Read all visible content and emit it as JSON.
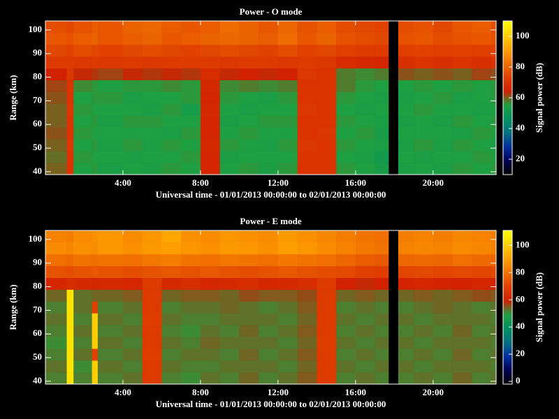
{
  "chart_data": [
    {
      "type": "heatmap",
      "title": "Power - O mode",
      "xlabel": "Universal time - 01/01/2013 00:00:00 to 02/01/2013 00:00:00",
      "ylabel": "Range (km)",
      "colorbar_label": "Signal power (dB)",
      "xlim": [
        0,
        23.25
      ],
      "ylim": [
        38.8,
        103.8
      ],
      "xticks": [
        {
          "value": 4,
          "label": "4:00"
        },
        {
          "value": 8,
          "label": "8:00"
        },
        {
          "value": 12,
          "label": "12:00"
        },
        {
          "value": 16,
          "label": "16:00"
        },
        {
          "value": 20,
          "label": "20:00"
        }
      ],
      "yticks": [
        40,
        50,
        60,
        70,
        80,
        90,
        100
      ],
      "clim": [
        10,
        110
      ],
      "colorbar_ticks": [
        20,
        40,
        60,
        80,
        100
      ],
      "colormap": [
        "#000000",
        "#000050",
        "#0030a0",
        "#007080",
        "#009060",
        "#20a040",
        "#d02000",
        "#e04000",
        "#f07000",
        "#ffa000",
        "#ffd000",
        "#ffff00"
      ],
      "x_edges": [
        0,
        1.1,
        1.45,
        2.4,
        2.7,
        4,
        5,
        6,
        7,
        8,
        9,
        10,
        11,
        12,
        13,
        14,
        15,
        16,
        17,
        17.7,
        18.2,
        19,
        20,
        21,
        22,
        23,
        23.25
      ],
      "y_edges": [
        38.8,
        43.8,
        48.8,
        53.8,
        58.8,
        63.8,
        68.8,
        73.8,
        78.8,
        83.8,
        88.8,
        93.8,
        98.8,
        103.8
      ],
      "z": [
        [
          60,
          70,
          55,
          56,
          54,
          55,
          54,
          56,
          55,
          66,
          55,
          56,
          54,
          56,
          70,
          70,
          56,
          55,
          53,
          null,
          54,
          55,
          54,
          56,
          55,
          56
        ],
        [
          59,
          70,
          56,
          55,
          55,
          54,
          55,
          55,
          56,
          66,
          54,
          55,
          55,
          55,
          70,
          70,
          55,
          54,
          52,
          null,
          55,
          54,
          55,
          55,
          56,
          55
        ],
        [
          60,
          71,
          55,
          56,
          54,
          56,
          54,
          56,
          55,
          67,
          56,
          55,
          54,
          56,
          71,
          70,
          56,
          55,
          54,
          null,
          54,
          56,
          54,
          56,
          55,
          54
        ],
        [
          61,
          70,
          56,
          55,
          55,
          55,
          55,
          54,
          56,
          66,
          55,
          56,
          55,
          55,
          70,
          71,
          55,
          56,
          53,
          null,
          55,
          55,
          55,
          54,
          56,
          55
        ],
        [
          60,
          70,
          55,
          56,
          54,
          56,
          56,
          55,
          55,
          66,
          54,
          55,
          56,
          56,
          70,
          70,
          56,
          55,
          54,
          null,
          54,
          55,
          54,
          56,
          55,
          56
        ],
        [
          60,
          71,
          56,
          55,
          55,
          55,
          54,
          56,
          53,
          67,
          55,
          54,
          55,
          55,
          71,
          70,
          55,
          54,
          55,
          null,
          55,
          56,
          55,
          55,
          54,
          55
        ],
        [
          61,
          70,
          55,
          56,
          56,
          54,
          55,
          55,
          56,
          66,
          56,
          55,
          54,
          56,
          70,
          70,
          56,
          55,
          54,
          null,
          54,
          55,
          56,
          54,
          55,
          56
        ],
        [
          62,
          70,
          57,
          56,
          55,
          56,
          56,
          57,
          56,
          67,
          57,
          58,
          57,
          58,
          70,
          70,
          58,
          56,
          55,
          null,
          55,
          56,
          55,
          56,
          55,
          56
        ],
        [
          65,
          71,
          64,
          63,
          62,
          64,
          63,
          64,
          63,
          68,
          64,
          65,
          64,
          65,
          71,
          70,
          58,
          57,
          58,
          null,
          61,
          60,
          61,
          60,
          62,
          61
        ],
        [
          72,
          72,
          71,
          72,
          71,
          72,
          71,
          72,
          72,
          72,
          71,
          72,
          72,
          71,
          72,
          71,
          68,
          67,
          66,
          null,
          69,
          70,
          69,
          70,
          69,
          70
        ],
        [
          75,
          74,
          76,
          75,
          74,
          75,
          76,
          75,
          74,
          75,
          76,
          75,
          74,
          76,
          74,
          75,
          73,
          72,
          72,
          null,
          73,
          74,
          73,
          74,
          73,
          74
        ],
        [
          78,
          77,
          79,
          80,
          78,
          79,
          80,
          78,
          79,
          80,
          81,
          80,
          79,
          82,
          78,
          80,
          77,
          76,
          75,
          null,
          77,
          78,
          76,
          77,
          78,
          77
        ],
        [
          76,
          75,
          77,
          79,
          78,
          80,
          81,
          79,
          78,
          79,
          82,
          80,
          78,
          81,
          77,
          79,
          76,
          75,
          74,
          null,
          76,
          77,
          75,
          78,
          79,
          76
        ]
      ]
    },
    {
      "type": "heatmap",
      "title": "Power - E mode",
      "xlabel": "Universal time - 01/01/2013 00:00:00 to 02/01/2013 00:00:00",
      "ylabel": "Range (km)",
      "colorbar_label": "Signal power (dB)",
      "xlim": [
        0,
        23.25
      ],
      "ylim": [
        38.8,
        103.8
      ],
      "xticks": [
        {
          "value": 4,
          "label": "4:00"
        },
        {
          "value": 8,
          "label": "8:00"
        },
        {
          "value": 12,
          "label": "12:00"
        },
        {
          "value": 16,
          "label": "16:00"
        },
        {
          "value": 20,
          "label": "20:00"
        }
      ],
      "yticks": [
        40,
        50,
        60,
        70,
        80,
        90,
        100
      ],
      "clim": [
        -2,
        111
      ],
      "colorbar_ticks": [
        0,
        20,
        40,
        60,
        80,
        100
      ],
      "colormap": [
        "#000000",
        "#000050",
        "#0030a0",
        "#007080",
        "#009060",
        "#20a040",
        "#d02000",
        "#e04000",
        "#f07000",
        "#ffa000",
        "#ffd000",
        "#ffff00"
      ],
      "x_edges": [
        0,
        1.1,
        1.45,
        2.4,
        2.7,
        4,
        5,
        6,
        7,
        8,
        9,
        10,
        11,
        12,
        13,
        14,
        15,
        16,
        17,
        17.7,
        18.2,
        19,
        20,
        21,
        22,
        23,
        23.25
      ],
      "y_edges": [
        38.8,
        43.8,
        48.8,
        53.8,
        58.8,
        63.8,
        68.8,
        73.8,
        78.8,
        83.8,
        88.8,
        93.8,
        98.8,
        103.8
      ],
      "z": [
        [
          52,
          105,
          52,
          100,
          52,
          53,
          68,
          52,
          51,
          53,
          52,
          54,
          52,
          53,
          55,
          68,
          52,
          53,
          52,
          null,
          52,
          53,
          52,
          54,
          52,
          53
        ],
        [
          53,
          105,
          51,
          100,
          53,
          52,
          68,
          53,
          52,
          52,
          53,
          53,
          53,
          52,
          54,
          68,
          53,
          52,
          53,
          null,
          53,
          52,
          53,
          53,
          53,
          52
        ],
        [
          52,
          105,
          53,
          70,
          52,
          53,
          69,
          52,
          53,
          53,
          52,
          54,
          52,
          53,
          55,
          68,
          52,
          53,
          52,
          null,
          52,
          53,
          52,
          54,
          52,
          53
        ],
        [
          51,
          105,
          52,
          100,
          53,
          52,
          68,
          53,
          52,
          54,
          53,
          53,
          53,
          52,
          54,
          69,
          53,
          52,
          53,
          null,
          53,
          52,
          53,
          53,
          53,
          52
        ],
        [
          52,
          105,
          53,
          100,
          52,
          53,
          68,
          52,
          51,
          53,
          52,
          54,
          52,
          53,
          55,
          68,
          52,
          53,
          52,
          null,
          52,
          53,
          52,
          54,
          52,
          53
        ],
        [
          53,
          105,
          52,
          100,
          53,
          52,
          69,
          53,
          52,
          52,
          53,
          53,
          53,
          52,
          54,
          68,
          53,
          52,
          53,
          null,
          53,
          52,
          53,
          53,
          53,
          52
        ],
        [
          52,
          105,
          53,
          70,
          52,
          53,
          68,
          52,
          53,
          53,
          54,
          53,
          52,
          53,
          55,
          68,
          52,
          53,
          52,
          null,
          52,
          53,
          54,
          53,
          52,
          53
        ],
        [
          54,
          105,
          53,
          54,
          54,
          55,
          68,
          54,
          55,
          55,
          54,
          56,
          55,
          55,
          56,
          68,
          54,
          55,
          54,
          null,
          54,
          55,
          54,
          55,
          56,
          55
        ],
        [
          62,
          64,
          63,
          62,
          63,
          62,
          68,
          63,
          64,
          62,
          63,
          64,
          62,
          63,
          64,
          68,
          60,
          59,
          60,
          null,
          61,
          62,
          61,
          60,
          62,
          61
        ],
        [
          74,
          73,
          74,
          75,
          74,
          73,
          74,
          75,
          74,
          75,
          74,
          73,
          74,
          75,
          74,
          73,
          72,
          70,
          69,
          null,
          71,
          72,
          71,
          72,
          71,
          72
        ],
        [
          80,
          79,
          81,
          80,
          81,
          80,
          82,
          83,
          81,
          80,
          82,
          81,
          80,
          82,
          81,
          80,
          78,
          76,
          75,
          null,
          78,
          79,
          78,
          80,
          79,
          78
        ],
        [
          86,
          85,
          87,
          86,
          88,
          87,
          89,
          90,
          88,
          87,
          89,
          88,
          87,
          90,
          88,
          86,
          84,
          82,
          81,
          null,
          84,
          85,
          84,
          86,
          85,
          84
        ],
        [
          84,
          83,
          86,
          87,
          88,
          86,
          88,
          92,
          87,
          86,
          88,
          87,
          86,
          89,
          87,
          85,
          83,
          81,
          80,
          null,
          83,
          84,
          83,
          85,
          84,
          83
        ]
      ]
    }
  ]
}
